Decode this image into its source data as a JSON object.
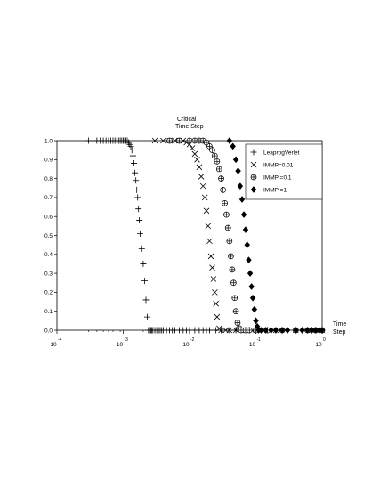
{
  "chart_data": {
    "type": "scatter",
    "title": [
      "Critical",
      "Time Step"
    ],
    "xlabel": [
      "Time",
      "Step"
    ],
    "ylabel": "",
    "x_scale": "log",
    "xlim": [
      0.0001,
      1
    ],
    "ylim": [
      0,
      1
    ],
    "x_ticks": [
      {
        "base": "10",
        "exp": "-4"
      },
      {
        "base": "10",
        "exp": "-3"
      },
      {
        "base": "10",
        "exp": "-2"
      },
      {
        "base": "10",
        "exp": "-1"
      },
      {
        "base": "10",
        "exp": "0"
      }
    ],
    "y_ticks": [
      "0.0",
      "0.1",
      "0.2",
      "0.3",
      "0.4",
      "0.5",
      "0.6",
      "0.7",
      "0.8",
      "0.9",
      "1.0"
    ],
    "legend_position": "top-right",
    "series": [
      {
        "name": "LeaprogVerlet",
        "marker": "plus",
        "x": [
          0.0003,
          0.00035,
          0.0004,
          0.00045,
          0.0005,
          0.00055,
          0.0006,
          0.00065,
          0.0007,
          0.00075,
          0.0008,
          0.00085,
          0.0009,
          0.00095,
          0.001,
          0.00105,
          0.0011,
          0.00115,
          0.0012,
          0.00125,
          0.0013,
          0.00135,
          0.0014,
          0.00145,
          0.0015,
          0.00155,
          0.0016,
          0.00165,
          0.0017,
          0.00175,
          0.0018,
          0.0019,
          0.002,
          0.0021,
          0.0022,
          0.0023,
          0.0024,
          0.0025,
          0.0026,
          0.0027,
          0.0028,
          0.003,
          0.0032,
          0.0034,
          0.0036,
          0.0038,
          0.004,
          0.0045,
          0.005,
          0.0055,
          0.006,
          0.007,
          0.008,
          0.009,
          0.01,
          0.012,
          0.014,
          0.016,
          0.018,
          0.02,
          0.025,
          0.03,
          0.04,
          0.05,
          0.06,
          0.08,
          0.1,
          0.15,
          0.2,
          0.3,
          0.5,
          0.7,
          1.0
        ],
        "y": [
          1.0,
          1.0,
          1.0,
          1.0,
          1.0,
          1.0,
          1.0,
          1.0,
          1.0,
          1.0,
          1.0,
          1.0,
          1.0,
          1.0,
          1.0,
          1.0,
          1.0,
          1.0,
          0.99,
          0.98,
          0.97,
          0.95,
          0.92,
          0.88,
          0.83,
          0.79,
          0.74,
          0.7,
          0.64,
          0.58,
          0.51,
          0.43,
          0.35,
          0.26,
          0.16,
          0.07,
          0.0,
          0.0,
          0.0,
          0.0,
          0.0,
          0.0,
          0.0,
          0.0,
          0.0,
          0.0,
          0.0,
          0.0,
          0.0,
          0.0,
          0.0,
          0.0,
          0.0,
          0.0,
          0.0,
          0.0,
          0.0,
          0.0,
          0.0,
          0.0,
          0.0,
          0.0,
          0.0,
          0.0,
          0.0,
          0.0,
          0.0,
          0.0,
          0.0,
          0.0,
          0.0,
          0.0,
          0.0
        ]
      },
      {
        "name": "IMMP=0.01",
        "marker": "cross",
        "x": [
          0.003,
          0.004,
          0.005,
          0.006,
          0.007,
          0.008,
          0.009,
          0.01,
          0.011,
          0.012,
          0.013,
          0.014,
          0.015,
          0.016,
          0.017,
          0.018,
          0.019,
          0.02,
          0.021,
          0.022,
          0.023,
          0.024,
          0.025,
          0.026,
          0.028,
          0.03,
          0.035,
          0.04,
          0.05,
          0.07,
          0.1,
          0.2,
          0.4,
          0.7,
          1.0
        ],
        "y": [
          1.0,
          1.0,
          1.0,
          1.0,
          1.0,
          1.0,
          0.99,
          0.98,
          0.96,
          0.93,
          0.9,
          0.86,
          0.81,
          0.76,
          0.7,
          0.63,
          0.55,
          0.47,
          0.39,
          0.33,
          0.27,
          0.2,
          0.14,
          0.07,
          0.01,
          0.0,
          0.0,
          0.0,
          0.0,
          0.0,
          0.0,
          0.0,
          0.0,
          0.0,
          0.0
        ]
      },
      {
        "name": "IMMP =0.1",
        "marker": "circle-plus",
        "x": [
          0.005,
          0.007,
          0.01,
          0.012,
          0.014,
          0.016,
          0.018,
          0.02,
          0.022,
          0.024,
          0.026,
          0.028,
          0.03,
          0.032,
          0.034,
          0.036,
          0.038,
          0.04,
          0.042,
          0.044,
          0.046,
          0.048,
          0.05,
          0.053,
          0.056,
          0.06,
          0.07,
          0.08,
          0.1,
          0.15,
          0.25,
          0.4,
          0.6,
          0.8,
          1.0
        ],
        "y": [
          1.0,
          1.0,
          1.0,
          1.0,
          1.0,
          1.0,
          0.99,
          0.97,
          0.95,
          0.92,
          0.89,
          0.85,
          0.8,
          0.74,
          0.67,
          0.61,
          0.54,
          0.47,
          0.39,
          0.32,
          0.25,
          0.17,
          0.1,
          0.04,
          0.01,
          0.0,
          0.0,
          0.0,
          0.0,
          0.0,
          0.0,
          0.0,
          0.0,
          0.0,
          0.0
        ]
      },
      {
        "name": "IMMP =1",
        "marker": "diamond",
        "x": [
          0.04,
          0.045,
          0.05,
          0.054,
          0.058,
          0.062,
          0.066,
          0.07,
          0.074,
          0.078,
          0.082,
          0.086,
          0.09,
          0.095,
          0.1,
          0.105,
          0.11,
          0.12,
          0.14,
          0.17,
          0.2,
          0.25,
          0.3,
          0.4,
          0.5,
          0.6,
          0.7,
          0.8,
          0.9,
          1.0
        ],
        "y": [
          1.0,
          0.97,
          0.9,
          0.84,
          0.76,
          0.69,
          0.61,
          0.53,
          0.45,
          0.37,
          0.3,
          0.23,
          0.17,
          0.11,
          0.05,
          0.02,
          0.0,
          0.0,
          0.0,
          0.0,
          0.0,
          0.0,
          0.0,
          0.0,
          0.0,
          0.0,
          0.0,
          0.0,
          0.0,
          0.0
        ]
      }
    ]
  }
}
